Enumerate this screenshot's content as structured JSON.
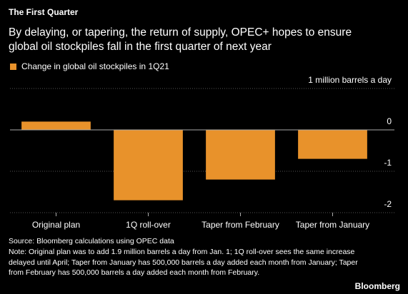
{
  "chart_data": {
    "type": "bar",
    "title": "The First Quarter",
    "subtitle": "By delaying, or tapering, the return of supply, OPEC+ hopes to ensure global oil stockpiles fall in the first quarter of next year",
    "series": [
      {
        "name": "Change in global oil stockpiles in 1Q21",
        "color": "#e8922b",
        "values": [
          0.2,
          -1.7,
          -1.2,
          -0.7
        ]
      }
    ],
    "categories": [
      "Original plan",
      "1Q roll-over",
      "Taper from February",
      "Taper from January"
    ],
    "ylim": [
      -2,
      1
    ],
    "yticks": [
      {
        "value": 1,
        "label": "1 million barrels a day"
      },
      0,
      -1,
      -2
    ],
    "source": "Source: Bloomberg calculations using OPEC data",
    "note": "Note: Original plan was to add 1.9 million barrels a day from Jan. 1; 1Q roll-over sees the same increase delayed until April; Taper from January has 500,000 barrels a day added each month from January; Taper from February has 500,000 barrels a day added each month from February.",
    "brand": "Bloomberg"
  }
}
